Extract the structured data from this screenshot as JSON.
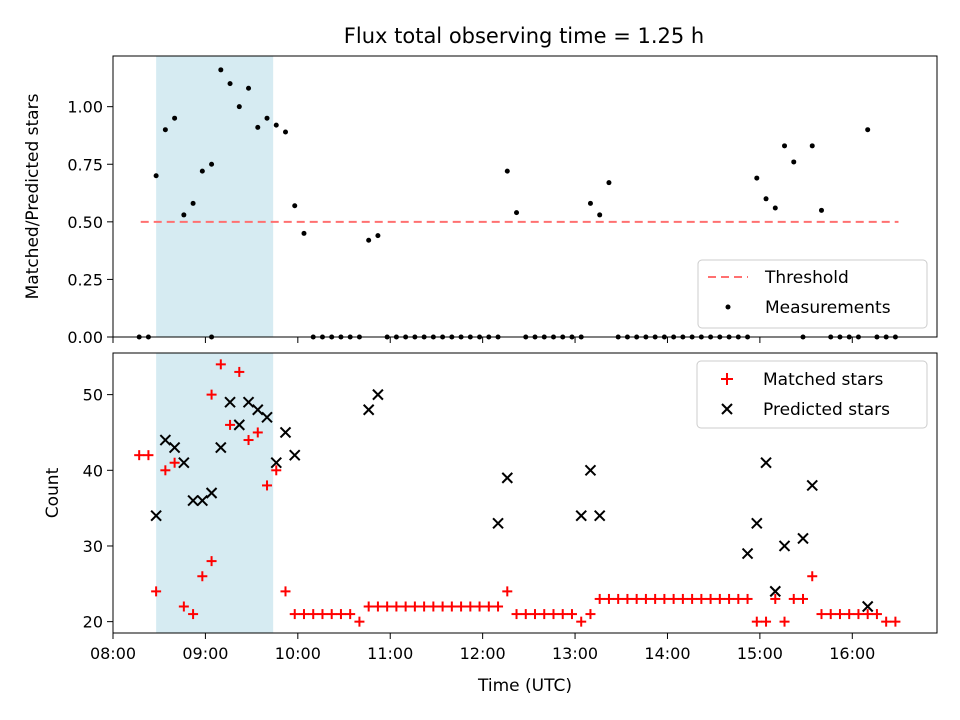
{
  "chart_data": [
    {
      "type": "scatter",
      "title": "Flux total observing time = 1.25 h",
      "xlabel": "",
      "ylabel": "Matched/Predicted stars",
      "xlim": [
        "08:00",
        "16:55"
      ],
      "ylim": [
        0,
        1.22
      ],
      "yticks": [
        "0.00",
        "0.25",
        "0.50",
        "0.75",
        "1.00"
      ],
      "grid": false,
      "legend": "lower right",
      "shaded_span": {
        "start": "08:28",
        "end": "09:44",
        "color": "#add8e6"
      },
      "threshold": {
        "name": "Threshold",
        "value": 0.5,
        "start": "08:18",
        "end": "16:30",
        "color": "#ff7070"
      },
      "series": [
        {
          "name": "Measurements",
          "color": "#000000",
          "marker": "dot",
          "x": [
            "08:17",
            "08:23",
            "08:28",
            "08:34",
            "08:40",
            "08:46",
            "08:52",
            "08:58",
            "09:04",
            "09:04",
            "09:10",
            "09:16",
            "09:22",
            "09:28",
            "09:34",
            "09:40",
            "09:46",
            "09:52",
            "09:58",
            "10:04",
            "10:10",
            "10:16",
            "10:22",
            "10:28",
            "10:34",
            "10:40",
            "10:46",
            "10:52",
            "10:58",
            "11:04",
            "11:10",
            "11:16",
            "11:22",
            "11:28",
            "11:34",
            "11:40",
            "11:46",
            "11:52",
            "11:58",
            "12:04",
            "12:10",
            "12:16",
            "12:22",
            "12:28",
            "12:34",
            "12:40",
            "12:46",
            "12:52",
            "12:58",
            "13:04",
            "13:10",
            "13:16",
            "13:22",
            "13:28",
            "13:34",
            "13:40",
            "13:46",
            "13:52",
            "13:58",
            "14:04",
            "14:10",
            "14:16",
            "14:22",
            "14:28",
            "14:34",
            "14:40",
            "14:46",
            "14:52",
            "14:58",
            "15:04",
            "15:10",
            "15:16",
            "15:22",
            "15:28",
            "15:34",
            "15:40",
            "15:46",
            "15:52",
            "15:58",
            "16:04",
            "16:10",
            "16:16",
            "16:22",
            "16:28"
          ],
          "y": [
            0,
            0,
            0.7,
            0.9,
            0.95,
            0.53,
            0.58,
            0.72,
            0.75,
            0,
            1.16,
            1.1,
            1.0,
            1.08,
            0.91,
            0.95,
            0.92,
            0.89,
            0.57,
            0.45,
            0,
            0,
            0,
            0,
            0,
            0,
            0.42,
            0.44,
            0,
            0,
            0,
            0,
            0,
            0,
            0,
            0,
            0,
            0,
            0,
            0,
            0,
            0.72,
            0.54,
            0,
            0,
            0,
            0,
            0,
            0,
            0,
            0.58,
            0.53,
            0.67,
            0,
            0,
            0,
            0,
            0,
            0,
            0,
            0,
            0,
            0,
            0,
            0,
            0,
            0,
            0,
            0.69,
            0.6,
            0.56,
            0.83,
            0.76,
            0,
            0.83,
            0.55,
            0,
            0,
            0,
            0,
            0.9,
            0,
            0,
            0
          ]
        }
      ]
    },
    {
      "type": "scatter",
      "title": "",
      "xlabel": "Time (UTC)",
      "ylabel": "Count",
      "xlim": [
        "08:00",
        "16:55"
      ],
      "ylim": [
        18.5,
        55.5
      ],
      "xticks": [
        "08:00",
        "09:00",
        "10:00",
        "11:00",
        "12:00",
        "13:00",
        "14:00",
        "15:00",
        "16:00"
      ],
      "yticks": [
        "20",
        "30",
        "40",
        "50"
      ],
      "grid": false,
      "legend": "upper right",
      "shaded_span": {
        "start": "08:28",
        "end": "09:44",
        "color": "#add8e6"
      },
      "series": [
        {
          "name": "Matched stars",
          "color": "#ff0000",
          "marker": "plus",
          "x": [
            "08:17",
            "08:23",
            "08:28",
            "08:34",
            "08:40",
            "08:46",
            "08:52",
            "08:58",
            "09:04",
            "09:04",
            "09:10",
            "09:16",
            "09:22",
            "09:28",
            "09:34",
            "09:40",
            "09:46",
            "09:52",
            "09:58",
            "10:04",
            "10:10",
            "10:16",
            "10:22",
            "10:28",
            "10:34",
            "10:40",
            "10:46",
            "10:52",
            "10:58",
            "11:04",
            "11:10",
            "11:16",
            "11:22",
            "11:28",
            "11:34",
            "11:40",
            "11:46",
            "11:52",
            "11:58",
            "12:04",
            "12:10",
            "12:16",
            "12:22",
            "12:28",
            "12:34",
            "12:40",
            "12:46",
            "12:52",
            "12:58",
            "13:04",
            "13:10",
            "13:16",
            "13:22",
            "13:28",
            "13:34",
            "13:40",
            "13:46",
            "13:52",
            "13:58",
            "14:04",
            "14:10",
            "14:16",
            "14:22",
            "14:28",
            "14:34",
            "14:40",
            "14:46",
            "14:52",
            "14:58",
            "15:04",
            "15:10",
            "15:16",
            "15:22",
            "15:28",
            "15:34",
            "15:40",
            "15:46",
            "15:52",
            "15:58",
            "16:04",
            "16:10",
            "16:16",
            "16:22",
            "16:28"
          ],
          "y": [
            42,
            42,
            24,
            40,
            41,
            22,
            21,
            26,
            28,
            50,
            54,
            46,
            53,
            44,
            45,
            38,
            40,
            24,
            21,
            21,
            21,
            21,
            21,
            21,
            21,
            20,
            22,
            22,
            22,
            22,
            22,
            22,
            22,
            22,
            22,
            22,
            22,
            22,
            22,
            22,
            22,
            24,
            21,
            21,
            21,
            21,
            21,
            21,
            21,
            20,
            21,
            23,
            23,
            23,
            23,
            23,
            23,
            23,
            23,
            23,
            23,
            23,
            23,
            23,
            23,
            23,
            23,
            23,
            20,
            20,
            23,
            20,
            23,
            23,
            26,
            21,
            21,
            21,
            21,
            21,
            21,
            21,
            20,
            20
          ]
        },
        {
          "name": "Predicted stars",
          "color": "#000000",
          "marker": "x",
          "x": [
            "08:28",
            "08:34",
            "08:40",
            "08:46",
            "08:52",
            "08:58",
            "09:04",
            "09:10",
            "09:16",
            "09:22",
            "09:28",
            "09:34",
            "09:40",
            "09:46",
            "09:52",
            "09:58",
            "10:46",
            "10:52",
            "12:10",
            "12:16",
            "13:04",
            "13:10",
            "13:16",
            "14:52",
            "14:58",
            "15:04",
            "15:10",
            "15:16",
            "15:28",
            "15:34",
            "16:10"
          ],
          "y": [
            34,
            44,
            43,
            41,
            36,
            36,
            37,
            43,
            49,
            46,
            49,
            48,
            47,
            41,
            45,
            42,
            48,
            50,
            33,
            39,
            34,
            40,
            34,
            29,
            33,
            41,
            24,
            30,
            31,
            38,
            22
          ]
        }
      ]
    }
  ]
}
